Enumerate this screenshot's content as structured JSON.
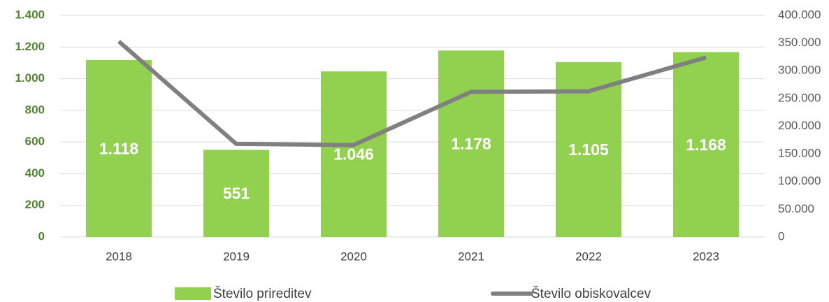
{
  "chart_data": {
    "type": "bar",
    "categories": [
      "2018",
      "2019",
      "2020",
      "2021",
      "2022",
      "2023"
    ],
    "series": [
      {
        "name": "Število prireditev",
        "type": "bar",
        "color": "#92d050",
        "axis": "y",
        "values": [
          1118,
          551,
          1046,
          1178,
          1105,
          1168
        ],
        "value_labels": [
          "1.118",
          "551",
          "1.046",
          "1.178",
          "1.105",
          "1.168"
        ]
      },
      {
        "name": "Število obiskovalcev",
        "type": "line",
        "color": "#808080",
        "axis": "y2",
        "values": [
          353000,
          168000,
          166000,
          262000,
          263000,
          324000
        ]
      }
    ],
    "ylim": [
      0,
      1400
    ],
    "yticks": [
      0,
      200,
      400,
      600,
      800,
      {
        "value": 1000,
        "label": "1.000"
      },
      {
        "value": 1200,
        "label": "1.200"
      },
      {
        "value": 1400,
        "label": "1.400"
      }
    ],
    "y2lim": [
      0,
      400000
    ],
    "y2ticks": [
      0,
      {
        "value": 50000,
        "label": "50.000"
      },
      {
        "value": 100000,
        "label": "100.000"
      },
      {
        "value": 150000,
        "label": "150.000"
      },
      {
        "value": 200000,
        "label": "200.000"
      },
      {
        "value": 250000,
        "label": "250.000"
      },
      {
        "value": 300000,
        "label": "300.000"
      },
      {
        "value": 350000,
        "label": "350.000"
      },
      {
        "value": 400000,
        "label": "400.000"
      }
    ],
    "grid": true,
    "legend": "bottom"
  }
}
